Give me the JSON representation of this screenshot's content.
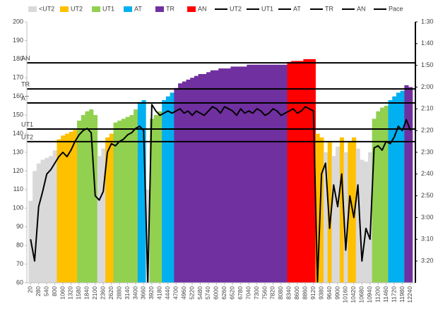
{
  "chart_data": {
    "type": "zone-area-pace",
    "xlim": [
      -100,
      12400
    ],
    "xticks": [
      20,
      280,
      540,
      800,
      1060,
      1320,
      1580,
      1840,
      2100,
      2360,
      2620,
      2880,
      3140,
      3400,
      3660,
      3920,
      4180,
      4440,
      4700,
      4960,
      5220,
      5480,
      5740,
      6000,
      6260,
      6520,
      6780,
      7040,
      7300,
      7560,
      7820,
      8080,
      8340,
      8600,
      8860,
      9120,
      9380,
      9640,
      9900,
      10160,
      10420,
      10680,
      10940,
      11200,
      11460,
      11720,
      11980,
      12240
    ],
    "ylim": [
      60,
      200
    ],
    "yticks": [
      60,
      70,
      80,
      90,
      100,
      110,
      120,
      130,
      140,
      150,
      160,
      170,
      180,
      190,
      200
    ],
    "y2lim": [
      90,
      210
    ],
    "y2ticks": [
      {
        "value": 90,
        "label": "1:30"
      },
      {
        "value": 100,
        "label": "1:40"
      },
      {
        "value": 110,
        "label": "1:50"
      },
      {
        "value": 120,
        "label": "2:00"
      },
      {
        "value": 130,
        "label": "2:10"
      },
      {
        "value": 140,
        "label": "2:20"
      },
      {
        "value": 150,
        "label": "2:30"
      },
      {
        "value": 160,
        "label": "2:40"
      },
      {
        "value": 170,
        "label": "2:50"
      },
      {
        "value": 180,
        "label": "3:00"
      },
      {
        "value": 190,
        "label": "3:10"
      },
      {
        "value": 200,
        "label": "3:20"
      }
    ],
    "x": [
      20,
      150,
      280,
      410,
      540,
      670,
      800,
      930,
      1060,
      1190,
      1320,
      1450,
      1580,
      1710,
      1840,
      1970,
      2100,
      2230,
      2360,
      2490,
      2620,
      2750,
      2880,
      3010,
      3140,
      3270,
      3400,
      3530,
      3660,
      3790,
      3920,
      4050,
      4180,
      4310,
      4440,
      4570,
      4700,
      4830,
      4960,
      5090,
      5220,
      5350,
      5480,
      5610,
      5740,
      5870,
      6000,
      6130,
      6260,
      6390,
      6520,
      6650,
      6780,
      6910,
      7040,
      7170,
      7300,
      7430,
      7560,
      7690,
      7820,
      7950,
      8080,
      8210,
      8340,
      8470,
      8600,
      8730,
      8860,
      8990,
      9120,
      9250,
      9380,
      9510,
      9640,
      9770,
      9900,
      10030,
      10160,
      10290,
      10420,
      10550,
      10680,
      10810,
      10940,
      11070,
      11200,
      11330,
      11460,
      11590,
      11720,
      11850,
      11980,
      12110,
      12240
    ],
    "hr": [
      104,
      120,
      124,
      126,
      127,
      128,
      131,
      137,
      139,
      140,
      141,
      142,
      147,
      150,
      152,
      153,
      150,
      128,
      132,
      138,
      140,
      146,
      147,
      148,
      149,
      150,
      153,
      157,
      158,
      110,
      148,
      150,
      152,
      158,
      160,
      162,
      164.5,
      167,
      168,
      169,
      170,
      171,
      172,
      172,
      173,
      174,
      174,
      175,
      175,
      175,
      176,
      176,
      176,
      176,
      177,
      177,
      177,
      177,
      177,
      177,
      177,
      177,
      177,
      177,
      178.5,
      179,
      179,
      179,
      180,
      180,
      180,
      140,
      138,
      130,
      136,
      128,
      133,
      138,
      130,
      136,
      138,
      132,
      126,
      125,
      130,
      148,
      152,
      154,
      155,
      158,
      160,
      162,
      163,
      166,
      165
    ],
    "zones": [
      {
        "name": "<UT2",
        "color": "#d9d9d9"
      },
      {
        "name": "UT2",
        "color": "#ffc000"
      },
      {
        "name": "UT1",
        "color": "#92d050"
      },
      {
        "name": "AT",
        "color": "#00b0f0"
      },
      {
        "name": "TR",
        "color": "#7030a0"
      },
      {
        "name": "AN",
        "color": "#ff0000"
      }
    ],
    "thresholds": [
      {
        "name": "UT2",
        "value": 135.7,
        "color": "#000000"
      },
      {
        "name": "UT1",
        "value": 142.5,
        "color": "#000000"
      },
      {
        "name": "AT",
        "value": 156.5,
        "color": "#000000"
      },
      {
        "name": "TR",
        "value": 164,
        "color": "#000000"
      },
      {
        "name": "AN",
        "value": 178,
        "color": "#000000"
      }
    ],
    "pace": {
      "name": "Pace",
      "color": "#000000",
      "axis": "y2",
      "values": [
        190,
        200,
        175,
        168,
        160,
        158,
        155,
        152,
        150,
        152,
        149,
        145,
        142,
        140,
        139,
        141,
        170,
        172,
        168,
        150,
        146,
        147,
        145,
        144,
        142,
        141,
        139,
        138,
        140,
        210,
        128,
        131,
        133,
        132,
        131,
        132,
        131,
        130,
        132,
        131,
        133,
        131,
        132,
        133,
        131,
        129,
        130,
        132,
        129,
        130,
        131,
        133,
        130,
        132,
        131,
        132,
        130,
        131,
        133,
        132,
        130,
        131,
        133,
        132,
        131,
        130,
        132,
        131,
        129,
        130,
        131,
        210,
        160,
        155,
        185,
        165,
        175,
        160,
        195,
        170,
        180,
        165,
        200,
        185,
        190,
        148,
        147,
        149,
        145,
        146,
        143,
        138,
        140,
        135,
        140
      ]
    }
  }
}
